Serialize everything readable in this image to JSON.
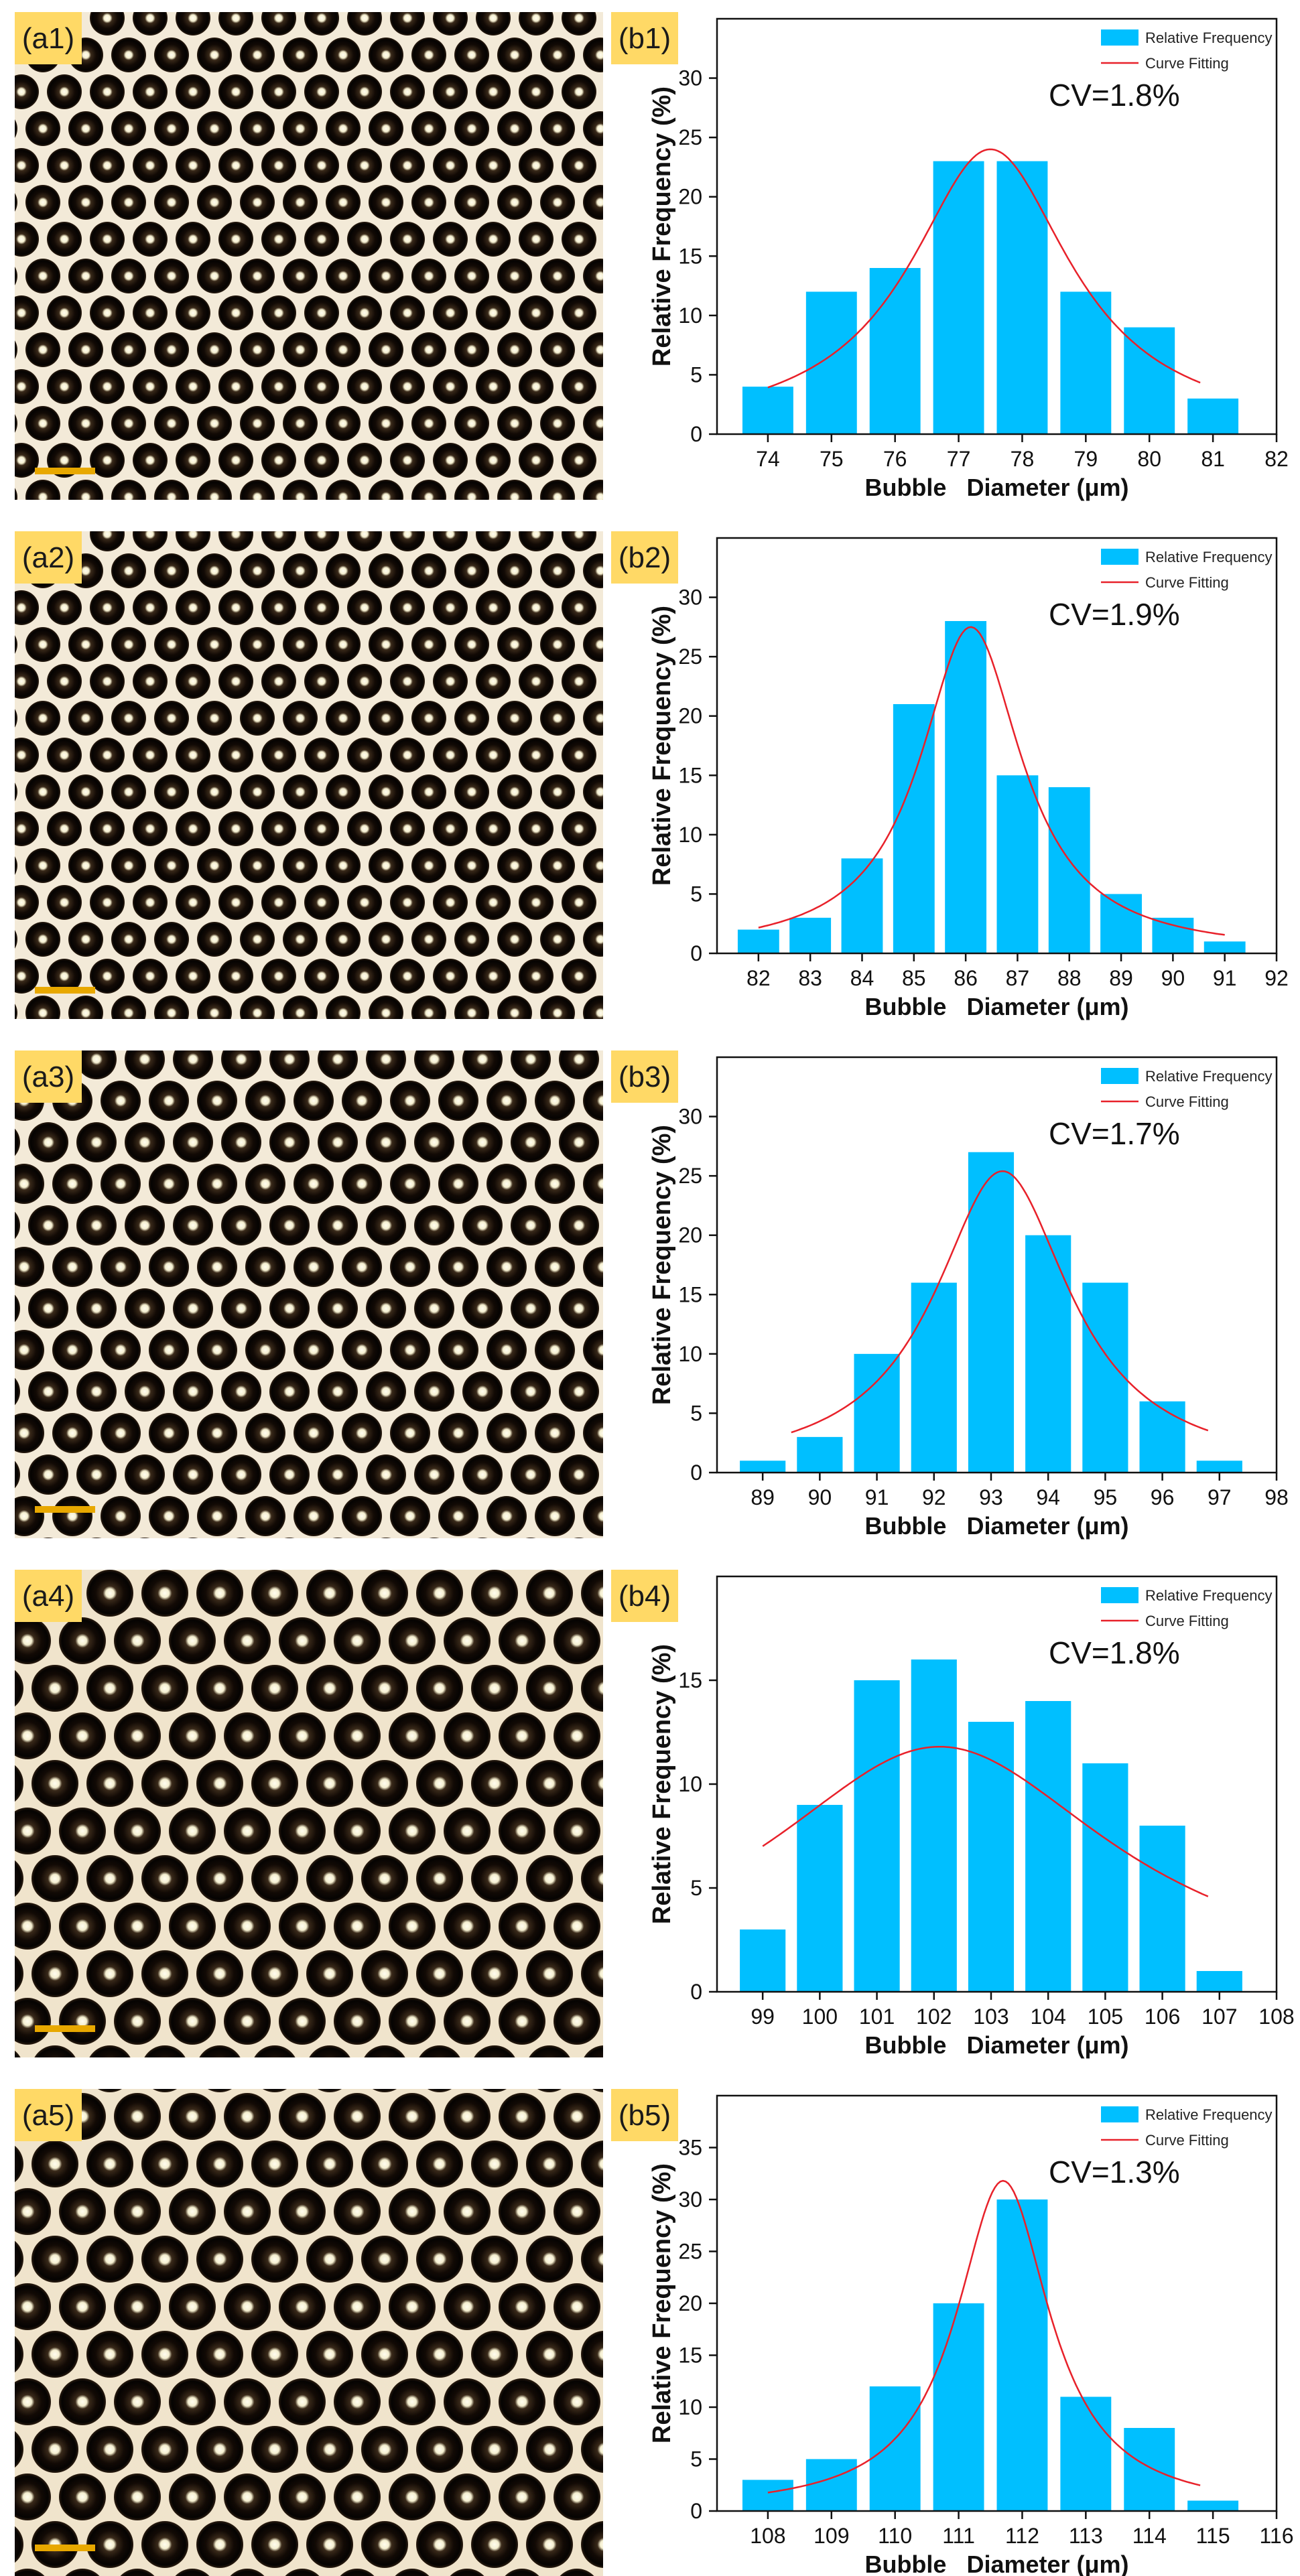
{
  "figure": {
    "background": "#ffffff",
    "label_box_color": "#FFD966",
    "bar_color": "#00BFFF",
    "curve_color": "#E8212A",
    "scale_bar_color": "#E8A800"
  },
  "micrograph_panels": [
    {
      "label": "(a1)"
    },
    {
      "label": "(a2)"
    },
    {
      "label": "(a3)"
    },
    {
      "label": "(a4)"
    },
    {
      "label": "(a5)"
    }
  ],
  "chart_data": [
    {
      "type": "bar",
      "panel_label": "(b1)",
      "cv_text": "CV=1.8%",
      "xlabel": "Bubble   Diameter (μm)",
      "ylabel": "Relative Frequency (%)",
      "legend": [
        "Relative Frequency",
        "Curve Fitting"
      ],
      "legend_placement": "top-right",
      "xlim": [
        73.2,
        82
      ],
      "ylim": [
        0,
        35
      ],
      "xticks": [
        74,
        75,
        76,
        77,
        78,
        79,
        80,
        81,
        82
      ],
      "yticks": [
        0,
        5,
        10,
        15,
        20,
        25,
        30
      ],
      "categories": [
        74,
        75,
        76,
        77,
        78,
        79,
        80,
        81
      ],
      "values": [
        4,
        12,
        14,
        23,
        23,
        12,
        9,
        3
      ],
      "fit": {
        "type": "lorentzian",
        "center": 77.5,
        "peak": 24,
        "halfwidth": 1.55,
        "x_start": 74,
        "x_end": 80.8
      }
    },
    {
      "type": "bar",
      "panel_label": "(b2)",
      "cv_text": "CV=1.9%",
      "xlabel": "Bubble   Diameter (μm)",
      "ylabel": "Relative Frequency (%)",
      "legend": [
        "Relative Frequency",
        "Curve Fitting"
      ],
      "legend_placement": "top-right",
      "xlim": [
        81.2,
        92
      ],
      "ylim": [
        0,
        35
      ],
      "xticks": [
        82,
        83,
        84,
        85,
        86,
        87,
        88,
        89,
        90,
        91,
        92
      ],
      "yticks": [
        0,
        5,
        10,
        15,
        20,
        25,
        30
      ],
      "categories": [
        82,
        83,
        84,
        85,
        86,
        87,
        88,
        89,
        90,
        91
      ],
      "values": [
        2,
        3,
        8,
        21,
        28,
        15,
        14,
        5,
        3,
        1
      ],
      "fit": {
        "type": "lorentzian",
        "center": 86.1,
        "peak": 27.5,
        "halfwidth": 1.2,
        "x_start": 82,
        "x_end": 91
      }
    },
    {
      "type": "bar",
      "panel_label": "(b3)",
      "cv_text": "CV=1.7%",
      "xlabel": "Bubble   Diameter (μm)",
      "ylabel": "Relative Frequency (%)",
      "legend": [
        "Relative Frequency",
        "Curve Fitting"
      ],
      "legend_placement": "top-right",
      "xlim": [
        88.2,
        98
      ],
      "ylim": [
        0,
        35
      ],
      "xticks": [
        89,
        90,
        91,
        92,
        93,
        94,
        95,
        96,
        97,
        98
      ],
      "yticks": [
        0,
        5,
        10,
        15,
        20,
        25,
        30
      ],
      "categories": [
        89,
        90,
        91,
        92,
        93,
        94,
        95,
        96,
        97
      ],
      "values": [
        1,
        3,
        10,
        16,
        27,
        20,
        16,
        6,
        1
      ],
      "fit": {
        "type": "lorentzian",
        "center": 93.2,
        "peak": 25.4,
        "halfwidth": 1.45,
        "x_start": 89.5,
        "x_end": 96.8
      }
    },
    {
      "type": "bar",
      "panel_label": "(b4)",
      "cv_text": "CV=1.8%",
      "xlabel": "Bubble   Diameter (μm)",
      "ylabel": "Relative Frequency (%)",
      "legend": [
        "Relative Frequency",
        "Curve Fitting"
      ],
      "legend_placement": "top-right",
      "xlim": [
        98.2,
        108
      ],
      "ylim": [
        0,
        20
      ],
      "xticks": [
        99,
        100,
        101,
        102,
        103,
        104,
        105,
        106,
        107,
        108
      ],
      "yticks": [
        0,
        5,
        10,
        15
      ],
      "categories": [
        99,
        100,
        101,
        102,
        103,
        104,
        105,
        106,
        107
      ],
      "values": [
        3,
        9,
        15,
        16,
        13,
        14,
        11,
        8,
        1
      ],
      "fit": {
        "type": "lorentzian",
        "center": 102.1,
        "peak": 11.8,
        "halfwidth": 3.75,
        "x_start": 99,
        "x_end": 106.8
      }
    },
    {
      "type": "bar",
      "panel_label": "(b5)",
      "cv_text": "CV=1.3%",
      "xlabel": "Bubble   Diameter (μm)",
      "ylabel": "Relative Frequency (%)",
      "legend": [
        "Relative Frequency",
        "Curve Fitting"
      ],
      "legend_placement": "top-right",
      "xlim": [
        107.2,
        116
      ],
      "ylim": [
        0,
        40
      ],
      "xticks": [
        108,
        109,
        110,
        111,
        112,
        113,
        114,
        115,
        116
      ],
      "yticks": [
        0,
        5,
        10,
        15,
        20,
        25,
        30,
        35
      ],
      "categories": [
        108,
        109,
        110,
        111,
        112,
        113,
        114,
        115
      ],
      "values": [
        3,
        5,
        12,
        20,
        30,
        11,
        8,
        1
      ],
      "fit": {
        "type": "lorentzian",
        "center": 111.7,
        "peak": 31.8,
        "halfwidth": 0.9,
        "x_start": 108,
        "x_end": 114.8
      }
    }
  ]
}
